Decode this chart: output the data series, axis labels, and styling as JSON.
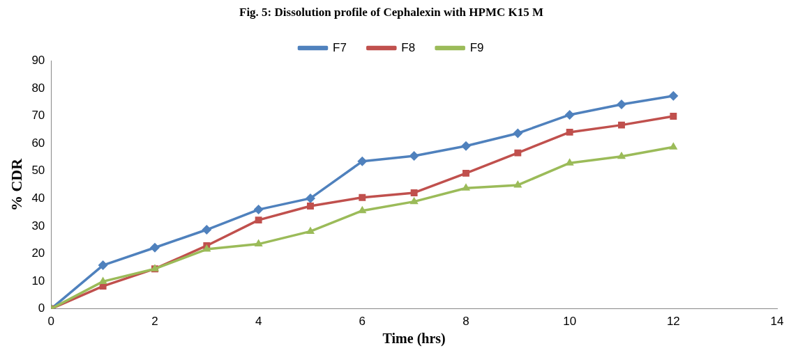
{
  "chart_data": {
    "type": "line",
    "title": "Fig. 5: Dissolution profile of Cephalexin with HPMC K15 M",
    "xlabel": "Time (hrs)",
    "ylabel": "% CDR",
    "x": [
      0,
      1,
      2,
      3,
      4,
      5,
      6,
      7,
      8,
      9,
      10,
      11,
      12
    ],
    "series": [
      {
        "name": "F7",
        "color": "#4f81bd",
        "marker": "diamond",
        "values": [
          0,
          15.8,
          22.2,
          28.7,
          36,
          40.1,
          53.5,
          55.5,
          59.1,
          63.7,
          70.4,
          74.2,
          77.3
        ]
      },
      {
        "name": "F8",
        "color": "#c0504d",
        "marker": "square",
        "values": [
          0,
          8.2,
          14.5,
          22.9,
          32.2,
          37.3,
          40.4,
          42.1,
          49.2,
          56.6,
          64.1,
          66.7,
          69.9
        ]
      },
      {
        "name": "F9",
        "color": "#9bbb59",
        "marker": "triangle",
        "values": [
          0,
          9.9,
          14.5,
          21.6,
          23.5,
          28.1,
          35.6,
          38.9,
          43.8,
          44.9,
          52.9,
          55.3,
          58.7
        ]
      }
    ],
    "xlim": [
      0,
      14
    ],
    "xticks": [
      0,
      2,
      4,
      6,
      8,
      10,
      12,
      14
    ],
    "ylim": [
      0,
      90
    ],
    "yticks": [
      0,
      10,
      20,
      30,
      40,
      50,
      60,
      70,
      80,
      90
    ],
    "grid": false,
    "legend": "top",
    "line_style": "solid"
  }
}
